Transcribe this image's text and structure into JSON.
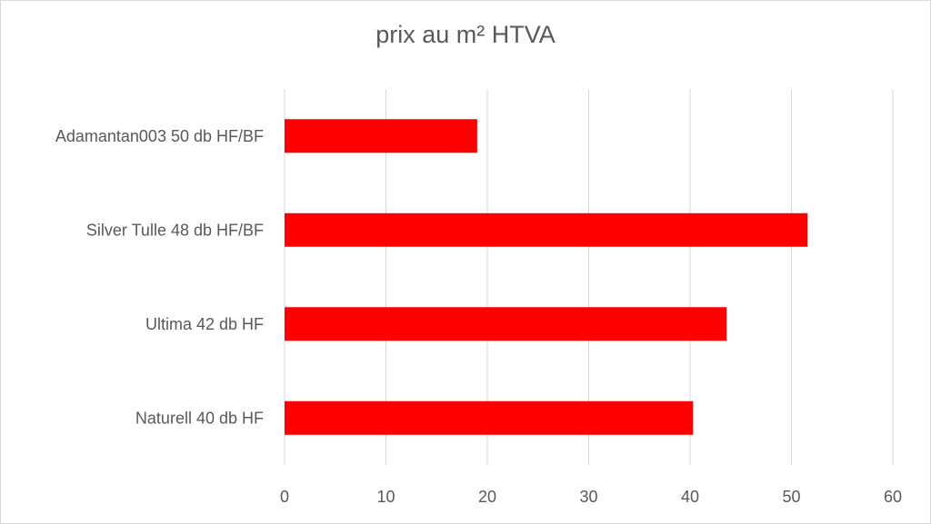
{
  "chart_data": {
    "type": "bar",
    "orientation": "horizontal",
    "title": "prix au m² HTVA",
    "categories": [
      "Adamantan003 50 db HF/BF",
      "Silver Tulle 48 db HF/BF",
      "Ultima 42 db HF",
      "Naturell 40 db HF"
    ],
    "values": [
      19,
      51.6,
      43.6,
      40.3
    ],
    "xlim": [
      0,
      60
    ],
    "xticks": [
      0,
      10,
      20,
      30,
      40,
      50,
      60
    ],
    "grid": true,
    "legend": "none",
    "bar_color": "#ff0000"
  }
}
